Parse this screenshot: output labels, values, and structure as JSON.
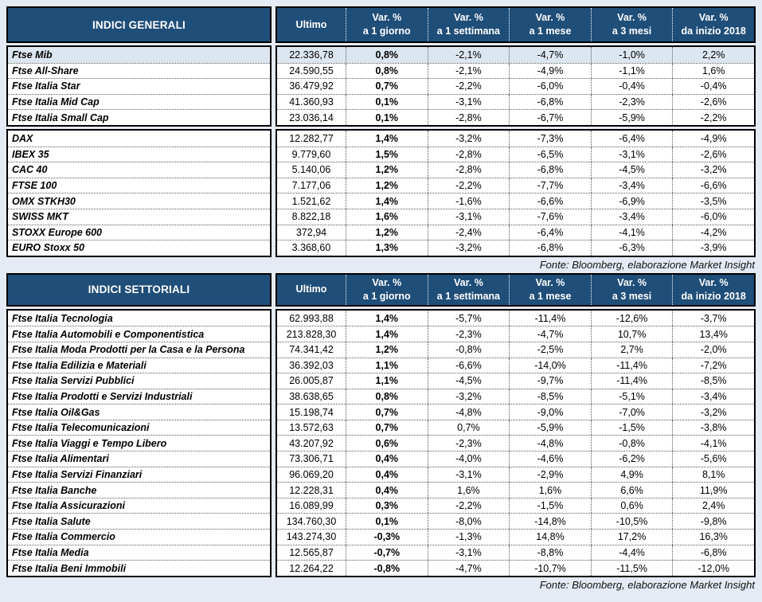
{
  "notes": {
    "source": "Fonte: Bloomberg, elaborazione Market Insight"
  },
  "colors": {
    "header_bg": "#1f4e79",
    "header_text": "#ffffff",
    "highlight_row_bg": "#dce6f1",
    "page_bg": "#e4ebf5",
    "border": "#000000",
    "body_text": "#000000"
  },
  "columns": {
    "ultimo": "Ultimo",
    "var_label": "Var. %",
    "periods": [
      "a 1 giorno",
      "a 1 settimana",
      "a 1 mese",
      "a 3 mesi",
      "da inizio 2018"
    ]
  },
  "tables": [
    {
      "title": "INDICI GENERALI",
      "groups": [
        {
          "rows": [
            {
              "name": "Ftse Mib",
              "ultimo": "22.336,78",
              "vars": [
                "0,8%",
                "-2,1%",
                "-4,7%",
                "-1,0%",
                "2,2%"
              ],
              "highlight": true
            },
            {
              "name": "Ftse All-Share",
              "ultimo": "24.590,55",
              "vars": [
                "0,8%",
                "-2,1%",
                "-4,9%",
                "-1,1%",
                "1,6%"
              ]
            },
            {
              "name": "Ftse Italia Star",
              "ultimo": "36.479,92",
              "vars": [
                "0,7%",
                "-2,2%",
                "-6,0%",
                "-0,4%",
                "-0,4%"
              ]
            },
            {
              "name": "Ftse Italia Mid Cap",
              "ultimo": "41.360,93",
              "vars": [
                "0,1%",
                "-3,1%",
                "-6,8%",
                "-2,3%",
                "-2,6%"
              ]
            },
            {
              "name": "Ftse Italia Small Cap",
              "ultimo": "23.036,14",
              "vars": [
                "0,1%",
                "-2,8%",
                "-6,7%",
                "-5,9%",
                "-2,2%"
              ]
            }
          ]
        },
        {
          "rows": [
            {
              "name": "DAX",
              "ultimo": "12.282,77",
              "vars": [
                "1,4%",
                "-3,2%",
                "-7,3%",
                "-6,4%",
                "-4,9%"
              ]
            },
            {
              "name": "IBEX 35",
              "ultimo": "9.779,60",
              "vars": [
                "1,5%",
                "-2,8%",
                "-6,5%",
                "-3,1%",
                "-2,6%"
              ]
            },
            {
              "name": "CAC 40",
              "ultimo": "5.140,06",
              "vars": [
                "1,2%",
                "-2,8%",
                "-6,8%",
                "-4,5%",
                "-3,2%"
              ]
            },
            {
              "name": "FTSE 100",
              "ultimo": "7.177,06",
              "vars": [
                "1,2%",
                "-2,2%",
                "-7,7%",
                "-3,4%",
                "-6,6%"
              ]
            },
            {
              "name": "OMX STKH30",
              "ultimo": "1.521,62",
              "vars": [
                "1,4%",
                "-1,6%",
                "-6,6%",
                "-6,9%",
                "-3,5%"
              ]
            },
            {
              "name": "SWISS MKT",
              "ultimo": "8.822,18",
              "vars": [
                "1,6%",
                "-3,1%",
                "-7,6%",
                "-3,4%",
                "-6,0%"
              ]
            },
            {
              "name": "STOXX Europe 600",
              "ultimo": "372,94",
              "vars": [
                "1,2%",
                "-2,4%",
                "-6,4%",
                "-4,1%",
                "-4,2%"
              ]
            },
            {
              "name": "EURO Stoxx 50",
              "ultimo": "3.368,60",
              "vars": [
                "1,3%",
                "-3,2%",
                "-6,8%",
                "-6,3%",
                "-3,9%"
              ]
            }
          ]
        }
      ]
    },
    {
      "title": "INDICI SETTORIALI",
      "groups": [
        {
          "rows": [
            {
              "name": "Ftse Italia Tecnologia",
              "ultimo": "62.993,88",
              "vars": [
                "1,4%",
                "-5,7%",
                "-11,4%",
                "-12,6%",
                "-3,7%"
              ]
            },
            {
              "name": "Ftse Italia Automobili e Componentistica",
              "ultimo": "213.828,30",
              "vars": [
                "1,4%",
                "-2,3%",
                "-4,7%",
                "10,7%",
                "13,4%"
              ]
            },
            {
              "name": "Ftse Italia Moda Prodotti per la Casa e la Persona",
              "ultimo": "74.341,42",
              "vars": [
                "1,2%",
                "-0,8%",
                "-2,5%",
                "2,7%",
                "-2,0%"
              ]
            },
            {
              "name": "Ftse Italia Edilizia e Materiali",
              "ultimo": "36.392,03",
              "vars": [
                "1,1%",
                "-6,6%",
                "-14,0%",
                "-11,4%",
                "-7,2%"
              ]
            },
            {
              "name": "Ftse Italia Servizi Pubblici",
              "ultimo": "26.005,87",
              "vars": [
                "1,1%",
                "-4,5%",
                "-9,7%",
                "-11,4%",
                "-8,5%"
              ]
            },
            {
              "name": "Ftse Italia Prodotti e Servizi Industriali",
              "ultimo": "38.638,65",
              "vars": [
                "0,8%",
                "-3,2%",
                "-8,5%",
                "-5,1%",
                "-3,4%"
              ]
            },
            {
              "name": "Ftse Italia Oil&Gas",
              "ultimo": "15.198,74",
              "vars": [
                "0,7%",
                "-4,8%",
                "-9,0%",
                "-7,0%",
                "-3,2%"
              ]
            },
            {
              "name": "Ftse Italia Telecomunicazioni",
              "ultimo": "13.572,63",
              "vars": [
                "0,7%",
                "0,7%",
                "-5,9%",
                "-1,5%",
                "-3,8%"
              ]
            },
            {
              "name": "Ftse Italia Viaggi e Tempo Libero",
              "ultimo": "43.207,92",
              "vars": [
                "0,6%",
                "-2,3%",
                "-4,8%",
                "-0,8%",
                "-4,1%"
              ]
            },
            {
              "name": "Ftse Italia Alimentari",
              "ultimo": "73.306,71",
              "vars": [
                "0,4%",
                "-4,0%",
                "-4,6%",
                "-6,2%",
                "-5,6%"
              ]
            },
            {
              "name": "Ftse Italia Servizi Finanziari",
              "ultimo": "96.069,20",
              "vars": [
                "0,4%",
                "-3,1%",
                "-2,9%",
                "4,9%",
                "8,1%"
              ]
            },
            {
              "name": "Ftse Italia Banche",
              "ultimo": "12.228,31",
              "vars": [
                "0,4%",
                "1,6%",
                "1,6%",
                "6,6%",
                "11,9%"
              ]
            },
            {
              "name": "Ftse Italia Assicurazioni",
              "ultimo": "16.089,99",
              "vars": [
                "0,3%",
                "-2,2%",
                "-1,5%",
                "0,6%",
                "2,4%"
              ]
            },
            {
              "name": "Ftse Italia Salute",
              "ultimo": "134.760,30",
              "vars": [
                "0,1%",
                "-8,0%",
                "-14,8%",
                "-10,5%",
                "-9,8%"
              ]
            },
            {
              "name": "Ftse Italia Commercio",
              "ultimo": "143.274,30",
              "vars": [
                "-0,3%",
                "-1,3%",
                "14,8%",
                "17,2%",
                "16,3%"
              ]
            },
            {
              "name": "Ftse Italia Media",
              "ultimo": "12.565,87",
              "vars": [
                "-0,7%",
                "-3,1%",
                "-8,8%",
                "-4,4%",
                "-6,8%"
              ]
            },
            {
              "name": "Ftse Italia Beni Immobili",
              "ultimo": "12.264,22",
              "vars": [
                "-0,8%",
                "-4,7%",
                "-10,7%",
                "-11,5%",
                "-12,0%"
              ]
            }
          ]
        }
      ]
    }
  ]
}
